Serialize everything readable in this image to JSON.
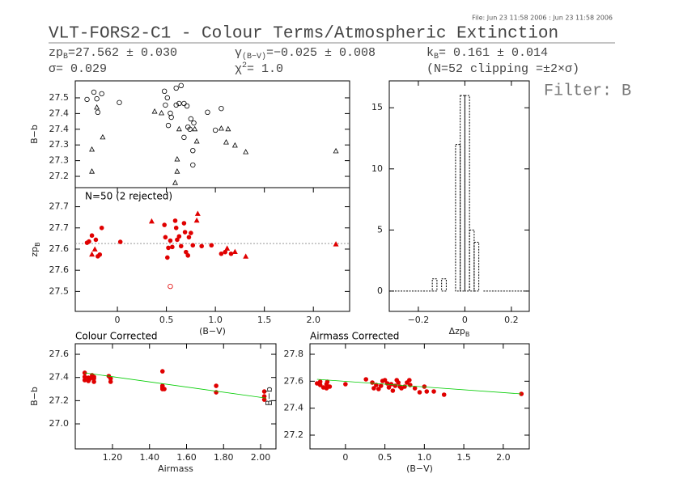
{
  "header": {
    "file_stamp": "File: Jun 23 11:58 2006 : Jun 23 11:58 2006",
    "title": "VLT-FORS2-C1 - Colour Terms/Atmospheric Extinction",
    "zp": {
      "name": "zp",
      "sub": "B",
      "text": "=27.562 ± 0.030"
    },
    "sigma": "σ= 0.029",
    "gamma": {
      "name": "γ",
      "sub": "(B−V)",
      "text": "=−0.025 ± 0.008"
    },
    "chi2": {
      "name": "χ",
      "sup": "2",
      "text": "=   1.0"
    },
    "k": {
      "name": "k",
      "sub": "B",
      "text": "= 0.161 ± 0.014"
    },
    "clipping": "(N=52 clipping =±2×σ)",
    "filter": "Filter: B"
  },
  "chart_data": [
    {
      "type": "scatter",
      "ylabel": "B−b",
      "xlim": [
        -0.43,
        2.37
      ],
      "ylim": [
        27.164,
        27.504
      ],
      "yticks": [
        {
          "value": 27.45,
          "label": "27.5"
        },
        27.4,
        {
          "value": 27.35,
          "label": "27.4"
        },
        27.3,
        {
          "value": 27.25,
          "label": "27.3"
        },
        27.2
      ],
      "series": [
        {
          "marker": "circle",
          "filled": false,
          "color": "#000000",
          "x": [
            -0.31,
            -0.24,
            -0.21,
            -0.2,
            -0.16,
            0.02,
            0.48,
            0.51,
            0.49,
            0.54,
            0.52,
            0.55,
            0.6,
            0.65,
            0.63,
            0.68,
            0.71,
            0.72,
            0.74,
            0.75,
            0.77,
            0.77,
            0.92,
            1.06,
            1.0,
            0.68,
            0.78,
            0.6
          ],
          "values": [
            27.445,
            27.468,
            27.447,
            27.404,
            27.463,
            27.435,
            27.471,
            27.45,
            27.427,
            27.401,
            27.362,
            27.388,
            27.481,
            27.489,
            27.432,
            27.432,
            27.424,
            27.357,
            27.35,
            27.383,
            27.282,
            27.236,
            27.404,
            27.416,
            27.347,
            27.324,
            27.37,
            27.427
          ]
        },
        {
          "marker": "triangle",
          "filled": false,
          "color": "#000000",
          "x": [
            -0.21,
            -0.26,
            -0.15,
            -0.26,
            0.38,
            0.45,
            0.63,
            0.61,
            0.61,
            0.59,
            0.79,
            0.81,
            1.06,
            1.13,
            1.11,
            1.2,
            1.31,
            2.23
          ],
          "values": [
            27.419,
            27.285,
            27.324,
            27.215,
            27.406,
            27.401,
            27.35,
            27.254,
            27.215,
            27.179,
            27.35,
            27.311,
            27.352,
            27.35,
            27.308,
            27.298,
            27.277,
            27.28
          ]
        }
      ]
    },
    {
      "type": "scatter",
      "ylabel": "zp",
      "ylabel_sub": "B",
      "xlabel": "(B−V)",
      "annotation": "N=50 (2 rejected)",
      "xlim": [
        -0.43,
        2.37
      ],
      "ylim": [
        27.453,
        27.745
      ],
      "xticks": [
        0,
        0.5,
        {
          "value": 1,
          "label": "1.0"
        },
        1.5,
        {
          "value": 2,
          "label": "2.0"
        }
      ],
      "yticks": [
        27.7,
        {
          "value": 27.65,
          "label": "27.7"
        },
        27.6,
        {
          "value": 27.55,
          "label": "27.6"
        },
        27.5
      ],
      "hline": 27.613,
      "series": [
        {
          "marker": "circle",
          "filled": true,
          "color": "#e00000",
          "x": [
            -0.31,
            -0.29,
            -0.26,
            -0.22,
            -0.2,
            -0.18,
            -0.16,
            0.03,
            0.48,
            0.49,
            0.51,
            0.52,
            0.54,
            0.56,
            0.59,
            0.6,
            0.61,
            0.63,
            0.65,
            0.68,
            0.69,
            0.7,
            0.72,
            0.73,
            0.75,
            0.77,
            0.86,
            0.96,
            1.06,
            1.1,
            1.16
          ],
          "values": [
            27.615,
            27.618,
            27.632,
            27.622,
            27.583,
            27.587,
            27.65,
            27.617,
            27.657,
            27.628,
            27.58,
            27.603,
            27.62,
            27.605,
            27.667,
            27.65,
            27.622,
            27.63,
            27.607,
            27.661,
            27.64,
            27.593,
            27.585,
            27.628,
            27.638,
            27.609,
            27.607,
            27.609,
            27.589,
            27.593,
            27.589
          ]
        },
        {
          "marker": "triangle",
          "filled": true,
          "color": "#e00000",
          "x": [
            -0.23,
            -0.26,
            0.35,
            0.82,
            0.81,
            1.12,
            1.2,
            1.31,
            2.23
          ],
          "values": [
            27.599,
            27.587,
            27.665,
            27.683,
            27.667,
            27.601,
            27.593,
            27.582,
            27.611
          ]
        },
        {
          "marker": "circle",
          "filled": false,
          "color": "#e00000",
          "x": [
            0.54
          ],
          "values": [
            27.512
          ]
        }
      ]
    },
    {
      "type": "histogram",
      "xlabel": "Δzp",
      "xlabel_sub": "B",
      "xlim": [
        -0.325,
        0.277
      ],
      "ylim": [
        -1.66,
        17.2
      ],
      "xticks": [
        {
          "value": -0.2,
          "label": "−0.2"
        },
        0,
        0.2
      ],
      "yticks": [
        0,
        5,
        10,
        15
      ],
      "bins": [
        -0.14,
        -0.12,
        -0.1,
        -0.08,
        -0.06,
        -0.04,
        -0.02,
        0,
        0.02,
        0.04,
        0.06,
        0.08
      ],
      "values": [
        1,
        0,
        1,
        0,
        0,
        12,
        16,
        16,
        5,
        4,
        0
      ],
      "color": "#000000"
    },
    {
      "type": "scatter",
      "title": "Colour Corrected",
      "xlabel": "Airmass",
      "ylabel": "B−b",
      "xlim": [
        0.999,
        2.083
      ],
      "ylim": [
        26.784,
        27.691
      ],
      "xticks": [
        {
          "value": 1.2,
          "label": "1.20"
        },
        {
          "value": 1.4,
          "label": "1.40"
        },
        {
          "value": 1.6,
          "label": "1.60"
        },
        {
          "value": 1.8,
          "label": "1.80"
        },
        {
          "value": 2,
          "label": "2.00"
        }
      ],
      "yticks": [
        {
          "value": 27,
          "label": "27.0"
        },
        27.2,
        27.4,
        27.6
      ],
      "series": [
        {
          "marker": "circle",
          "filled": true,
          "color": "#e00000",
          "x": [
            1.05,
            1.05,
            1.05,
            1.07,
            1.07,
            1.08,
            1.09,
            1.1,
            1.1,
            1.1,
            1.18,
            1.19,
            1.19,
            1.47,
            1.47,
            1.47,
            1.47,
            1.48,
            1.76,
            1.76,
            2.02,
            2.02,
            2.02
          ],
          "values": [
            27.44,
            27.405,
            27.377,
            27.398,
            27.37,
            27.391,
            27.419,
            27.405,
            27.363,
            27.391,
            27.412,
            27.391,
            27.363,
            27.453,
            27.328,
            27.314,
            27.3,
            27.3,
            27.328,
            27.272,
            27.237,
            27.209,
            27.279
          ]
        }
      ],
      "fit": {
        "color": "#00cc00",
        "x": [
          1.05,
          2.03
        ],
        "values": [
          27.44,
          27.222
        ]
      }
    },
    {
      "type": "scatter",
      "title": "Airmass Corrected",
      "xlabel": "(B−V)",
      "ylabel": "B−b",
      "xlim": [
        -0.45,
        2.33
      ],
      "ylim": [
        27.098,
        27.878
      ],
      "xticks": [
        0,
        0.5,
        {
          "value": 1,
          "label": "1.0"
        },
        1.5,
        {
          "value": 2,
          "label": "2.0"
        }
      ],
      "yticks": [
        27.2,
        27.4,
        27.6,
        27.8
      ],
      "series": [
        {
          "marker": "circle",
          "filled": true,
          "color": "#e00000",
          "x": [
            -0.36,
            -0.32,
            -0.32,
            -0.28,
            -0.24,
            -0.24,
            -0.2,
            -0.23,
            0,
            0.26,
            0.34,
            0.36,
            0.39,
            0.42,
            0.45,
            0.47,
            0.5,
            0.53,
            0.55,
            0.58,
            0.6,
            0.63,
            0.65,
            0.67,
            0.69,
            0.71,
            0.75,
            0.82,
            0.88,
            0.94,
            1.0,
            1.03,
            1.12,
            1.25,
            2.23,
            0.81,
            0.78
          ],
          "values": [
            27.584,
            27.572,
            27.596,
            27.554,
            27.578,
            27.548,
            27.56,
            27.596,
            27.578,
            27.614,
            27.59,
            27.548,
            27.572,
            27.542,
            27.566,
            27.602,
            27.608,
            27.584,
            27.554,
            27.578,
            27.53,
            27.566,
            27.608,
            27.59,
            27.56,
            27.548,
            27.56,
            27.572,
            27.548,
            27.518,
            27.56,
            27.524,
            27.524,
            27.5,
            27.506,
            27.608,
            27.59
          ]
        }
      ],
      "fit": {
        "color": "#00cc00",
        "x": [
          -0.36,
          2.23
        ],
        "values": [
          27.614,
          27.506
        ]
      }
    }
  ]
}
